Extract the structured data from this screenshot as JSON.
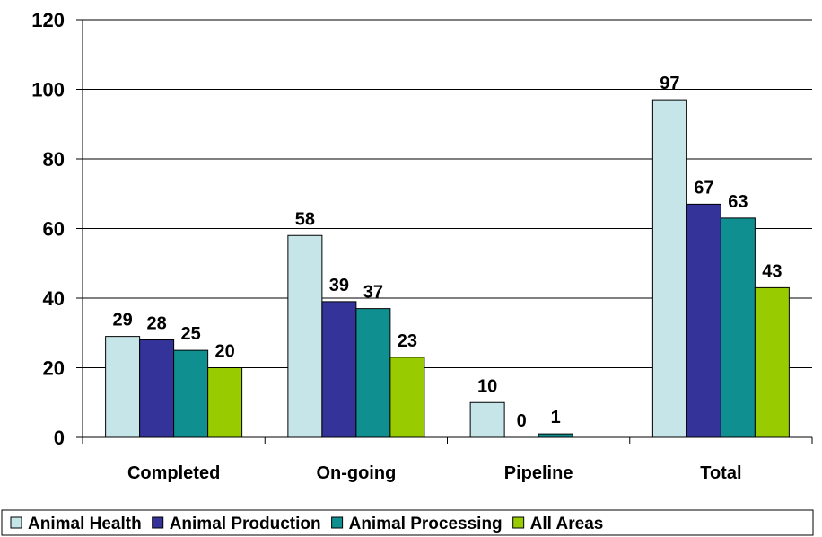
{
  "chart_data": {
    "type": "bar",
    "categories": [
      "Completed",
      "On-going",
      "Pipeline",
      "Total"
    ],
    "series": [
      {
        "name": "Animal Health",
        "color": "#c6e5e8",
        "values": [
          29,
          58,
          10,
          97
        ]
      },
      {
        "name": "Animal Production",
        "color": "#333399",
        "values": [
          28,
          39,
          0,
          67
        ]
      },
      {
        "name": "Animal Processing",
        "color": "#0f8f8f",
        "values": [
          25,
          37,
          1,
          63
        ]
      },
      {
        "name": "All Areas",
        "color": "#99cc00",
        "values": [
          20,
          23,
          null,
          43
        ]
      }
    ],
    "ylim": [
      0,
      120
    ],
    "yticks": [
      0,
      20,
      40,
      60,
      80,
      100,
      120
    ],
    "grid": true,
    "legend_position": "bottom",
    "title": "",
    "xlabel": "",
    "ylabel": ""
  }
}
